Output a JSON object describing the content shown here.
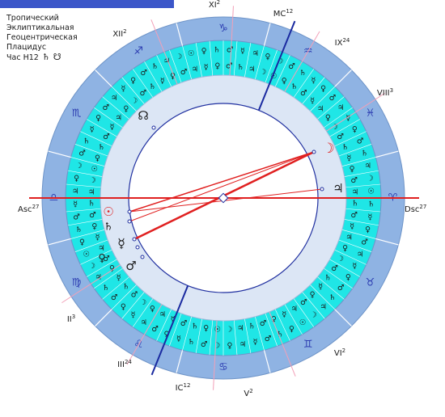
{
  "header": {
    "lines": [
      "Тропический",
      "Эклиптикальная",
      "Геоцентрическая",
      "Плацидус"
    ],
    "hour_label": "Час H12",
    "hour_glyphs": [
      "♄",
      "☋"
    ]
  },
  "colors": {
    "outer_ring": "#8fb3e3",
    "decan_ring": "#1fe6e6",
    "inner_ring": "#dce6f5",
    "aspect_red": "#e02020",
    "axis_blue": "#1a2aa0",
    "house_line": "#f2a0b8",
    "sign_glyph": "#2a3ab0"
  },
  "signs": [
    {
      "glyph": "♑",
      "name": "capricorn-icon"
    },
    {
      "glyph": "♐",
      "name": "sagittarius-icon"
    },
    {
      "glyph": "♏",
      "name": "scorpio-icon"
    },
    {
      "glyph": "♎",
      "name": "libra-icon"
    },
    {
      "glyph": "♍",
      "name": "virgo-icon"
    },
    {
      "glyph": "♌",
      "name": "leo-icon"
    },
    {
      "glyph": "♋",
      "name": "cancer-icon"
    },
    {
      "glyph": "♊",
      "name": "gemini-icon"
    },
    {
      "glyph": "♉",
      "name": "taurus-icon"
    },
    {
      "glyph": "♈",
      "name": "aries-icon"
    },
    {
      "glyph": "♓",
      "name": "pisces-icon"
    },
    {
      "glyph": "♒",
      "name": "aquarius-icon"
    }
  ],
  "decan_pattern": [
    "☉",
    "☽",
    "♃",
    "♄",
    "♂",
    "♀",
    "☿",
    "♃",
    "♂",
    "♀",
    "☿",
    "♄",
    "♂",
    "☽",
    "♀",
    "♃",
    "☿",
    "♂",
    "♄",
    "♀"
  ],
  "axes": {
    "asc": {
      "label": "Asc",
      "deg": "27"
    },
    "dsc": {
      "label": "Dsc",
      "deg": "27"
    },
    "mc": {
      "label": "MC",
      "deg": "12"
    },
    "ic": {
      "label": "IC",
      "deg": "12"
    }
  },
  "houses": [
    {
      "label": "II",
      "deg": "3"
    },
    {
      "label": "III",
      "deg": "24"
    },
    {
      "label": "V",
      "deg": "2"
    },
    {
      "label": "VI",
      "deg": "2"
    },
    {
      "label": "VIII",
      "deg": "3"
    },
    {
      "label": "IX",
      "deg": "24"
    },
    {
      "label": "XI",
      "deg": "2"
    },
    {
      "label": "XII",
      "deg": "2"
    }
  ],
  "planets": [
    {
      "glyph": "☽",
      "name": "moon-icon"
    },
    {
      "glyph": "♃",
      "name": "jupiter-icon"
    },
    {
      "glyph": "☉",
      "name": "sun-icon"
    },
    {
      "glyph": "♄",
      "name": "saturn-icon"
    },
    {
      "glyph": "☿",
      "name": "mercury-icon"
    },
    {
      "glyph": "♀",
      "name": "venus-icon"
    },
    {
      "glyph": "♂",
      "name": "mars-icon"
    },
    {
      "glyph": "☊",
      "name": "north-node-icon"
    }
  ]
}
